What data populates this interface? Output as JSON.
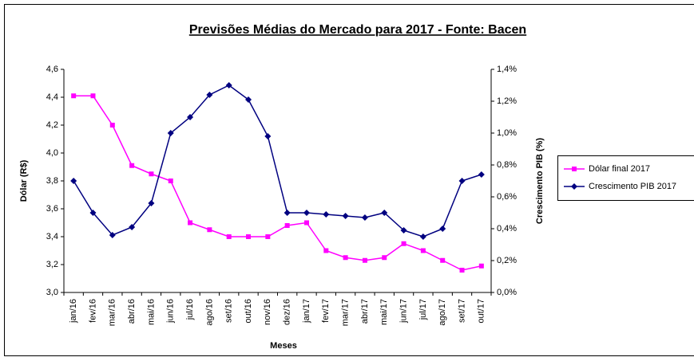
{
  "chart_data": {
    "type": "line",
    "title": "Previsões Médias do Mercado para 2017 - Fonte: Bacen",
    "x_label": "Meses",
    "y_label": "Dólar (R$)",
    "y2_label": "Crescimento PIB (%)",
    "categories": [
      "jan/16",
      "fev/16",
      "mar/16",
      "abr/16",
      "mai/16",
      "jun/16",
      "jul/16",
      "ago/16",
      "set/16",
      "out/16",
      "nov/16",
      "dez/16",
      "jan/17",
      "fev/17",
      "mar/17",
      "abr/17",
      "mai/17",
      "jun/17",
      "jul/17",
      "ago/17",
      "set/17",
      "out/17"
    ],
    "series": [
      {
        "name": "Dólar final 2017",
        "color": "#ff00ff",
        "marker": "square",
        "values": [
          4.41,
          4.41,
          4.2,
          3.91,
          3.85,
          3.8,
          3.5,
          3.45,
          3.4,
          3.4,
          3.4,
          3.48,
          3.5,
          3.3,
          3.25,
          3.23,
          3.25,
          3.35,
          3.3,
          3.23,
          3.16,
          3.19
        ]
      },
      {
        "name": "Crescimento PIB 2017",
        "color": "#000080",
        "marker": "diamond",
        "axis": "y2",
        "values": [
          0.7,
          0.5,
          0.36,
          0.41,
          0.56,
          1.0,
          1.1,
          1.24,
          1.3,
          1.21,
          0.98,
          0.5,
          0.5,
          0.49,
          0.48,
          0.47,
          0.5,
          0.39,
          0.35,
          0.4,
          0.7,
          0.74
        ]
      }
    ],
    "ylim": [
      3.0,
      4.6
    ],
    "yticks": [
      {
        "value": 3.0,
        "label": "3,0"
      },
      {
        "value": 3.2,
        "label": "3,2"
      },
      {
        "value": 3.4,
        "label": "3,4"
      },
      {
        "value": 3.6,
        "label": "3,6"
      },
      {
        "value": 3.8,
        "label": "3,8"
      },
      {
        "value": 4.0,
        "label": "4,0"
      },
      {
        "value": 4.2,
        "label": "4,2"
      },
      {
        "value": 4.4,
        "label": "4,4"
      },
      {
        "value": 4.6,
        "label": "4,6"
      }
    ],
    "y2lim": [
      0,
      1.4
    ],
    "y2ticks": [
      {
        "value": 0,
        "label": "0,0%"
      },
      {
        "value": 0.2,
        "label": "0,2%"
      },
      {
        "value": 0.4,
        "label": "0,4%"
      },
      {
        "value": 0.6,
        "label": "0,6%"
      },
      {
        "value": 0.8,
        "label": "0,8%"
      },
      {
        "value": 1.0,
        "label": "1,0%"
      },
      {
        "value": 1.2,
        "label": "1,2%"
      },
      {
        "value": 1.4,
        "label": "1,4%"
      }
    ],
    "grid": false,
    "legend": "right"
  }
}
